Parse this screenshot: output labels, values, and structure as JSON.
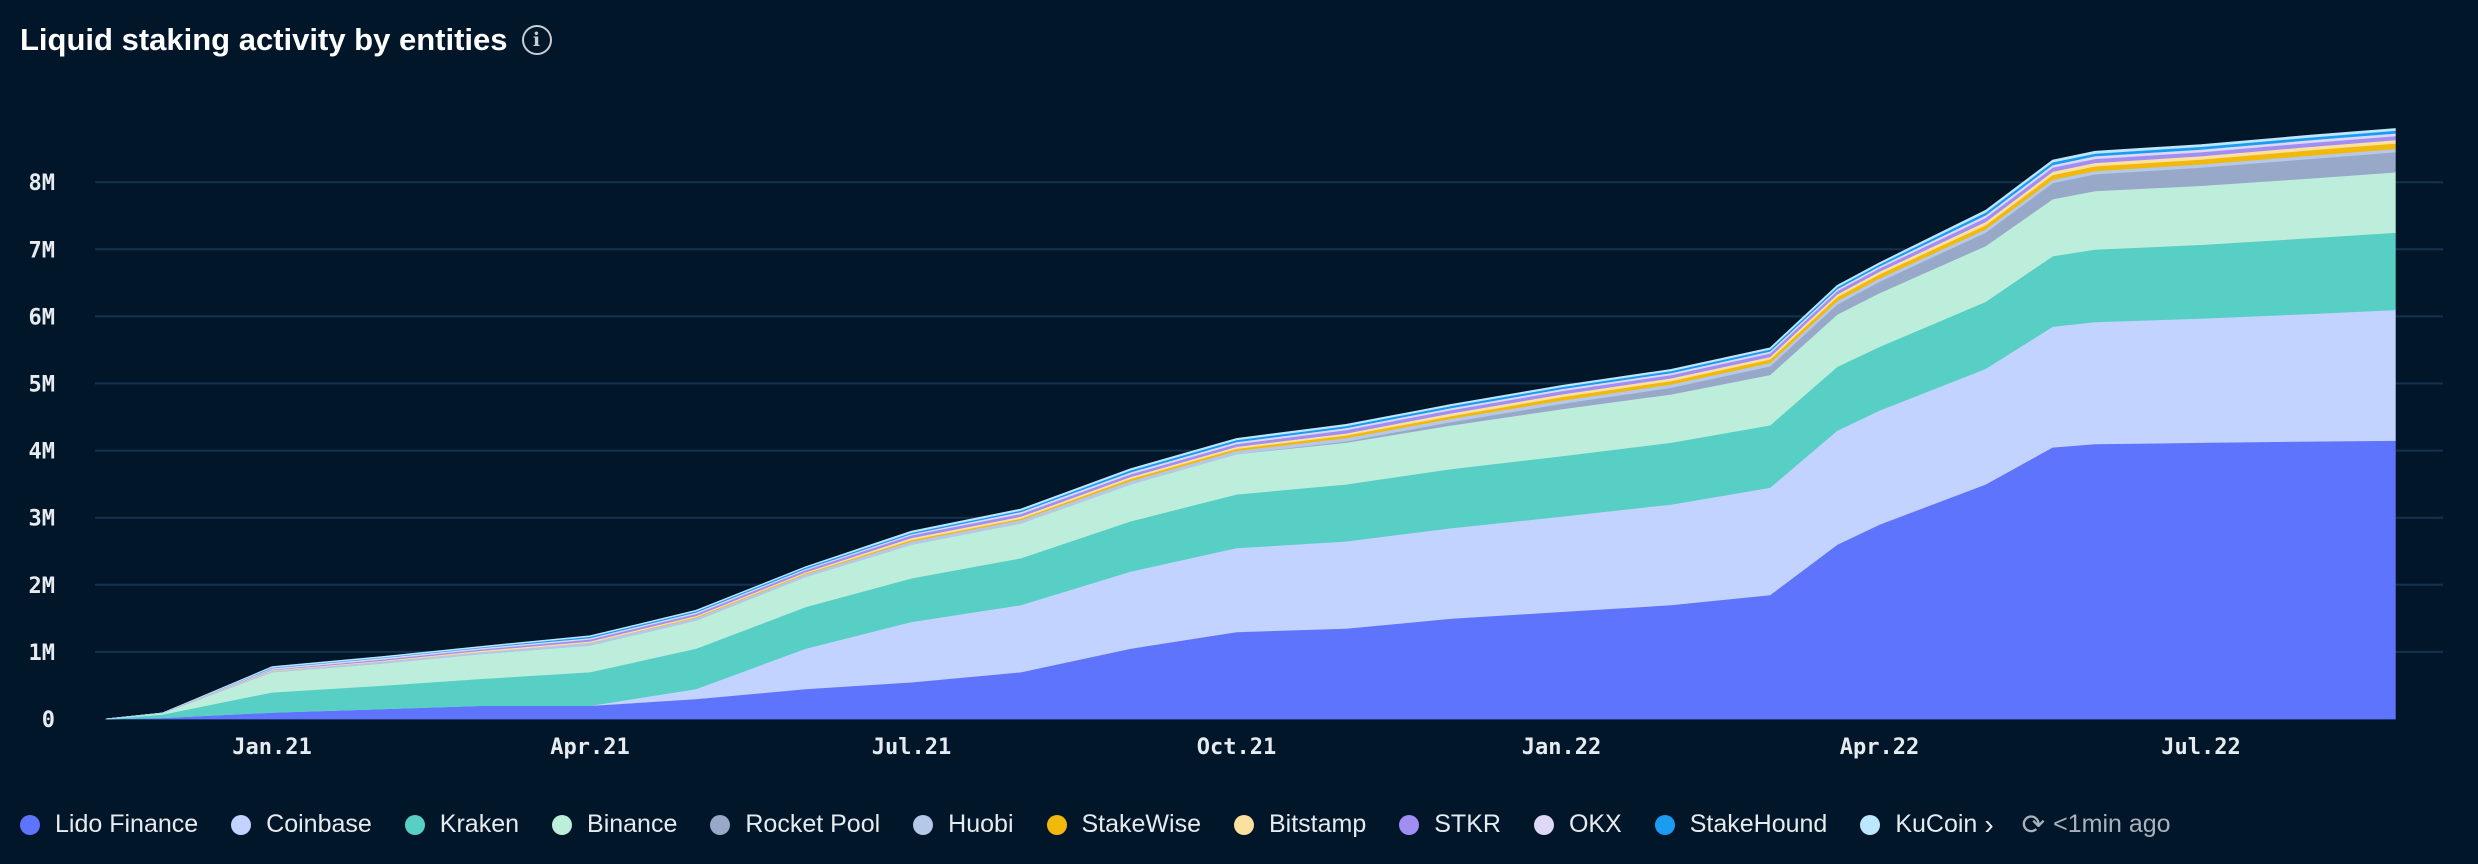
{
  "header": {
    "title": "Liquid staking activity by entities",
    "info_icon": "info-icon"
  },
  "footer": {
    "updated": "<1min ago",
    "more_icon": "›",
    "refresh_icon": "refresh-clock-icon"
  },
  "chart_data": {
    "type": "area",
    "stacked": true,
    "title": "Liquid staking activity by entities",
    "xlabel": "",
    "ylabel": "",
    "ylim": [
      0,
      8900000
    ],
    "yticks": [
      {
        "v": 0,
        "label": "0"
      },
      {
        "v": 1000000,
        "label": "1M"
      },
      {
        "v": 2000000,
        "label": "2M"
      },
      {
        "v": 3000000,
        "label": "3M"
      },
      {
        "v": 4000000,
        "label": "4M"
      },
      {
        "v": 5000000,
        "label": "5M"
      },
      {
        "v": 6000000,
        "label": "6M"
      },
      {
        "v": 7000000,
        "label": "7M"
      },
      {
        "v": 8000000,
        "label": "8M"
      }
    ],
    "xticks": [
      {
        "date": "2021-01-01",
        "label": "Jan.21"
      },
      {
        "date": "2021-04-01",
        "label": "Apr.21"
      },
      {
        "date": "2021-07-01",
        "label": "Jul.21"
      },
      {
        "date": "2021-10-01",
        "label": "Oct.21"
      },
      {
        "date": "2022-01-01",
        "label": "Jan.22"
      },
      {
        "date": "2022-04-01",
        "label": "Apr.22"
      },
      {
        "date": "2022-07-01",
        "label": "Jul.22"
      }
    ],
    "x": [
      "2020-11-15",
      "2020-12-01",
      "2021-01-01",
      "2021-02-01",
      "2021-03-01",
      "2021-04-01",
      "2021-05-01",
      "2021-06-01",
      "2021-07-01",
      "2021-08-01",
      "2021-09-01",
      "2021-10-01",
      "2021-11-01",
      "2021-12-01",
      "2022-01-01",
      "2022-02-01",
      "2022-03-01",
      "2022-03-20",
      "2022-04-01",
      "2022-05-01",
      "2022-05-20",
      "2022-06-01",
      "2022-07-01",
      "2022-08-01",
      "2022-08-25"
    ],
    "unit_scale": 1000000,
    "series": [
      {
        "name": "Lido Finance",
        "color": "#5f74fc",
        "values": [
          0,
          0.02,
          0.1,
          0.15,
          0.2,
          0.2,
          0.3,
          0.45,
          0.55,
          0.7,
          1.05,
          1.3,
          1.35,
          1.5,
          1.6,
          1.7,
          1.85,
          2.6,
          2.9,
          3.5,
          4.05,
          4.1,
          4.12,
          4.14,
          4.15
        ]
      },
      {
        "name": "Coinbase",
        "color": "#c3d3ff",
        "values": [
          0,
          0,
          0,
          0,
          0,
          0,
          0.15,
          0.6,
          0.9,
          1.0,
          1.15,
          1.25,
          1.3,
          1.35,
          1.42,
          1.5,
          1.6,
          1.7,
          1.7,
          1.72,
          1.8,
          1.82,
          1.85,
          1.9,
          1.95
        ]
      },
      {
        "name": "Kraken",
        "color": "#58cfc4",
        "values": [
          0,
          0.05,
          0.3,
          0.35,
          0.4,
          0.5,
          0.6,
          0.62,
          0.65,
          0.7,
          0.75,
          0.8,
          0.85,
          0.88,
          0.9,
          0.92,
          0.93,
          0.95,
          0.95,
          1.0,
          1.05,
          1.08,
          1.1,
          1.13,
          1.15
        ]
      },
      {
        "name": "Binance",
        "color": "#bdeedb",
        "values": [
          0,
          0.02,
          0.3,
          0.33,
          0.37,
          0.4,
          0.42,
          0.45,
          0.5,
          0.52,
          0.55,
          0.6,
          0.62,
          0.65,
          0.7,
          0.72,
          0.75,
          0.78,
          0.8,
          0.83,
          0.85,
          0.87,
          0.88,
          0.89,
          0.9
        ]
      },
      {
        "name": "Rocket Pool",
        "color": "#98a8c8",
        "values": [
          0,
          0,
          0,
          0,
          0,
          0,
          0,
          0,
          0,
          0,
          0,
          0,
          0.02,
          0.05,
          0.08,
          0.1,
          0.13,
          0.15,
          0.17,
          0.2,
          0.24,
          0.25,
          0.27,
          0.29,
          0.3
        ]
      },
      {
        "name": "Huobi",
        "color": "#b5c8e8",
        "values": [
          0,
          0,
          0.02,
          0.03,
          0.03,
          0.04,
          0.04,
          0.04,
          0.05,
          0.05,
          0.05,
          0.05,
          0.05,
          0.05,
          0.05,
          0.05,
          0.05,
          0.05,
          0.05,
          0.05,
          0.05,
          0.05,
          0.05,
          0.05,
          0.05
        ]
      },
      {
        "name": "StakeWise",
        "color": "#f0b90b",
        "values": [
          0,
          0,
          0,
          0,
          0,
          0,
          0.01,
          0.01,
          0.02,
          0.02,
          0.03,
          0.03,
          0.04,
          0.04,
          0.05,
          0.05,
          0.05,
          0.06,
          0.06,
          0.06,
          0.07,
          0.07,
          0.07,
          0.08,
          0.08
        ]
      },
      {
        "name": "Bitstamp",
        "color": "#fbe0a0",
        "values": [
          0,
          0,
          0.01,
          0.01,
          0.02,
          0.02,
          0.02,
          0.02,
          0.03,
          0.03,
          0.03,
          0.03,
          0.03,
          0.04,
          0.04,
          0.04,
          0.04,
          0.04,
          0.04,
          0.05,
          0.05,
          0.05,
          0.05,
          0.05,
          0.05
        ]
      },
      {
        "name": "STKR",
        "color": "#a18ef5",
        "values": [
          0,
          0,
          0.01,
          0.02,
          0.02,
          0.03,
          0.03,
          0.03,
          0.04,
          0.04,
          0.04,
          0.04,
          0.05,
          0.05,
          0.05,
          0.05,
          0.05,
          0.05,
          0.05,
          0.06,
          0.06,
          0.06,
          0.06,
          0.06,
          0.06
        ]
      },
      {
        "name": "OKX",
        "color": "#dcd8f5",
        "values": [
          0,
          0,
          0.02,
          0.02,
          0.02,
          0.02,
          0.02,
          0.02,
          0.02,
          0.03,
          0.03,
          0.03,
          0.03,
          0.03,
          0.03,
          0.03,
          0.03,
          0.03,
          0.03,
          0.04,
          0.04,
          0.04,
          0.04,
          0.04,
          0.04
        ]
      },
      {
        "name": "StakeHound",
        "color": "#1a9cf0",
        "values": [
          0,
          0,
          0.01,
          0.01,
          0.01,
          0.02,
          0.02,
          0.02,
          0.02,
          0.02,
          0.03,
          0.03,
          0.03,
          0.03,
          0.03,
          0.03,
          0.03,
          0.03,
          0.03,
          0.04,
          0.04,
          0.04,
          0.04,
          0.04,
          0.04
        ]
      },
      {
        "name": "KuCoin",
        "color": "#bde6ff",
        "values": [
          0,
          0,
          0.01,
          0.01,
          0.01,
          0.01,
          0.01,
          0.01,
          0.02,
          0.02,
          0.02,
          0.02,
          0.02,
          0.02,
          0.02,
          0.02,
          0.02,
          0.02,
          0.02,
          0.03,
          0.03,
          0.03,
          0.03,
          0.03,
          0.03
        ]
      }
    ],
    "grid": true,
    "legend": "bottom"
  }
}
